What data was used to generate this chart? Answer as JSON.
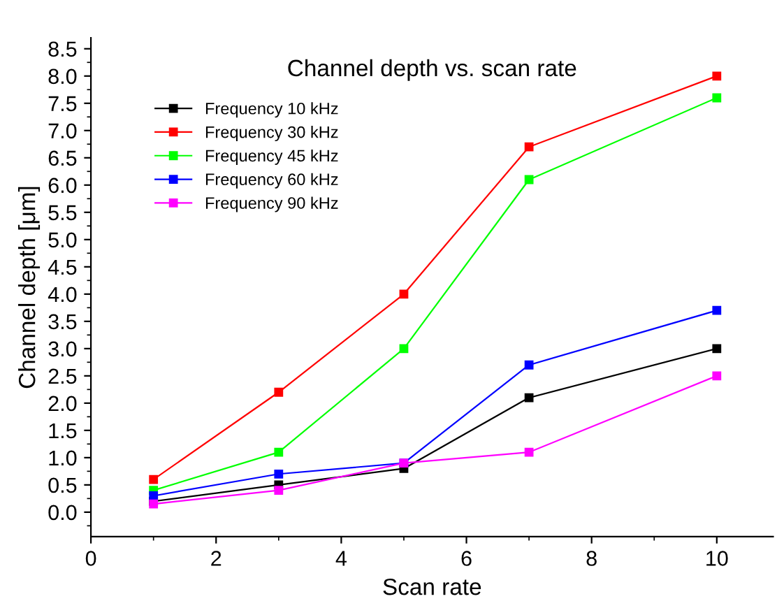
{
  "chart_data": {
    "type": "line",
    "title": "Channel depth vs. scan rate",
    "xlabel": "Scan rate",
    "ylabel": "Channel depth [μm]",
    "x": [
      1,
      3,
      5,
      7,
      10
    ],
    "series": [
      {
        "name": "Frequency 10 kHz",
        "color": "#000000",
        "values": [
          0.2,
          0.5,
          0.8,
          2.1,
          3.0
        ]
      },
      {
        "name": "Frequency 30 kHz",
        "color": "#ff0000",
        "values": [
          0.6,
          2.2,
          4.0,
          6.7,
          8.0
        ]
      },
      {
        "name": "Frequency 45 kHz",
        "color": "#00ff00",
        "values": [
          0.4,
          1.1,
          3.0,
          6.1,
          7.6
        ]
      },
      {
        "name": "Frequency 60 kHz",
        "color": "#0000ff",
        "values": [
          0.3,
          0.7,
          0.9,
          2.7,
          3.7
        ]
      },
      {
        "name": "Frequency 90 kHz",
        "color": "#ff00ff",
        "values": [
          0.15,
          0.4,
          0.9,
          1.1,
          2.5
        ]
      }
    ],
    "xlim": [
      0,
      10.9
    ],
    "xticks": [
      0,
      2,
      4,
      6,
      8,
      10
    ],
    "ylim": [
      -0.45,
      8.7
    ],
    "yticks": [
      {
        "value": 0,
        "label": "0.0"
      },
      {
        "value": 0.5,
        "label": "0.5"
      },
      {
        "value": 1,
        "label": "1.0"
      },
      {
        "value": 1.5,
        "label": "1.5"
      },
      {
        "value": 2,
        "label": "2.0"
      },
      {
        "value": 2.5,
        "label": "2.5"
      },
      {
        "value": 3,
        "label": "3.0"
      },
      {
        "value": 3.5,
        "label": "3.5"
      },
      {
        "value": 4,
        "label": "4.0"
      },
      {
        "value": 4.5,
        "label": "4.5"
      },
      {
        "value": 5,
        "label": "5.0"
      },
      {
        "value": 5.5,
        "label": "5.5"
      },
      {
        "value": 6,
        "label": "6.0"
      },
      {
        "value": 6.5,
        "label": "6.5"
      },
      {
        "value": 7,
        "label": "7.0"
      },
      {
        "value": 7.5,
        "label": "7.5"
      },
      {
        "value": 8,
        "label": "8.0"
      },
      {
        "value": 8.5,
        "label": "8.5"
      }
    ],
    "marker": "square",
    "line_style": "solid",
    "grid": false,
    "legend": "top left"
  }
}
